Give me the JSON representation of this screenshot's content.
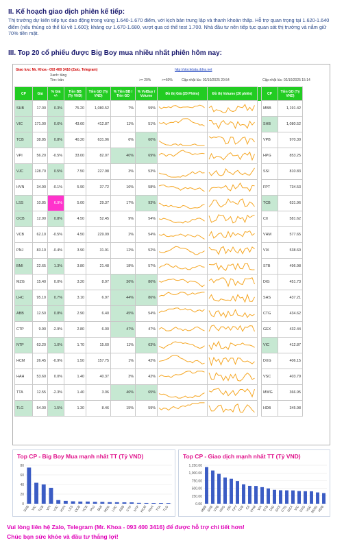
{
  "section2_title": "II. Kế hoạch giao dịch phiên kế tiếp:",
  "section2_text": "Thị trường dự kiến tiếp tục dao động trong vùng 1.640-1.670 điểm, với kịch bản trung lập và thanh khoản thấp. Hỗ trợ quan trọng tại 1.620-1.640 điểm (nếu thủng có thể lùi về 1.600); kháng cự 1.670-1.680, vượt qua có thể test 1.700. Nhà đầu tư nên tiếp tục quan sát thị trường và nắm giữ 70% tiền mặt.",
  "section3_title": "III. Top 20 cổ phiếu được Big Boy mua nhiều nhất phiên hôm nay:",
  "header": {
    "contact": "Giao lưu: Mr. Khoa - 093 400 3416 (Zalo, Telegram)",
    "site": "http://stockdata.ddns.net",
    "legend1": "Xanh: tăng",
    "legend2": "Tím: trần",
    "threshold1": ">= 20%",
    "threshold2": ">=60%",
    "updated_left": "Cập nhật lúc: 02/10/2025 20:54",
    "updated_right": "Cập nhật lúc: 02/10/2025 15:14"
  },
  "columns": [
    "CP",
    "Giá",
    "% Giá +/-",
    "Tiền BB (Tỷ VND)",
    "Tiền GD (Tỷ VND)",
    "% Tiền BB / Tiền GD",
    "% VolBuy / Volume",
    "Đồ thị Giá (20 Phiên)",
    "Đồ thị Volume (20 phiên)"
  ],
  "right_columns": [
    "CP",
    "Tiền GD (Tỷ VND)"
  ],
  "rows": [
    {
      "cp": "SHB",
      "price": "17.00",
      "chg": "0.3%",
      "bb": "75.20",
      "gd": "1,080.52",
      "pct_bb": "7%",
      "volbuy": "59%",
      "rcp": "MBB",
      "rgd": "1,191.42"
    },
    {
      "cp": "VIC",
      "price": "171.00",
      "chg": "0.6%",
      "bb": "43.60",
      "gd": "412.87",
      "pct_bb": "11%",
      "volbuy": "51%",
      "rcp": "SHB",
      "rgd": "1,080.52"
    },
    {
      "cp": "TCB",
      "price": "38.85",
      "chg": "0.8%",
      "bb": "40.20",
      "gd": "631.96",
      "pct_bb": "6%",
      "volbuy": "60%",
      "rcp": "VPB",
      "rgd": "970.30"
    },
    {
      "cp": "VPI",
      "price": "56.20",
      "chg": "-0.5%",
      "bb": "33.00",
      "gd": "82.07",
      "pct_bb": "40%",
      "volbuy": "69%",
      "rcp": "HPG",
      "rgd": "853.25"
    },
    {
      "cp": "VJC",
      "price": "128.70",
      "chg": "0.5%",
      "bb": "7.50",
      "gd": "227.98",
      "pct_bb": "3%",
      "volbuy": "53%",
      "rcp": "SSI",
      "rgd": "810.83"
    },
    {
      "cp": "HVN",
      "price": "34.90",
      "chg": "-0.1%",
      "bb": "5.90",
      "gd": "37.72",
      "pct_bb": "16%",
      "volbuy": "58%",
      "rcp": "FPT",
      "rgd": "734.53"
    },
    {
      "cp": "LSS",
      "price": "10.85",
      "chg": "6.9%",
      "bb": "5.00",
      "gd": "29.37",
      "pct_bb": "17%",
      "volbuy": "93%",
      "rcp": "TCB",
      "rgd": "631.96"
    },
    {
      "cp": "OCB",
      "price": "12.90",
      "chg": "0.8%",
      "bb": "4.50",
      "gd": "52.45",
      "pct_bb": "9%",
      "volbuy": "54%",
      "rcp": "CII",
      "rgd": "581.62"
    },
    {
      "cp": "VCB",
      "price": "62.10",
      "chg": "-0.5%",
      "bb": "4.50",
      "gd": "229.09",
      "pct_bb": "2%",
      "volbuy": "54%",
      "rcp": "VHM",
      "rgd": "577.65"
    },
    {
      "cp": "PNJ",
      "price": "83.10",
      "chg": "-0.4%",
      "bb": "3.90",
      "gd": "31.91",
      "pct_bb": "12%",
      "volbuy": "52%",
      "rcp": "VIX",
      "rgd": "538.60"
    },
    {
      "cp": "BMI",
      "price": "22.65",
      "chg": "1.3%",
      "bb": "3.80",
      "gd": "21.48",
      "pct_bb": "18%",
      "volbuy": "57%",
      "rcp": "STB",
      "rgd": "496.98"
    },
    {
      "cp": "MZG",
      "price": "15.40",
      "chg": "0.0%",
      "bb": "3.20",
      "gd": "8.97",
      "pct_bb": "36%",
      "volbuy": "86%",
      "rcp": "DIG",
      "rgd": "451.73"
    },
    {
      "cp": "LHC",
      "price": "95.10",
      "chg": "0.7%",
      "bb": "3.10",
      "gd": "6.97",
      "pct_bb": "44%",
      "volbuy": "86%",
      "rcp": "SHS",
      "rgd": "437.21"
    },
    {
      "cp": "ABB",
      "price": "12.50",
      "chg": "0.8%",
      "bb": "2.90",
      "gd": "6.40",
      "pct_bb": "45%",
      "volbuy": "54%",
      "rcp": "CTG",
      "rgd": "434.62"
    },
    {
      "cp": "CTP",
      "price": "9.90",
      "chg": "-2.9%",
      "bb": "2.80",
      "gd": "6.00",
      "pct_bb": "47%",
      "volbuy": "47%",
      "rcp": "GEX",
      "rgd": "432.44"
    },
    {
      "cp": "NTP",
      "price": "63.20",
      "chg": "1.0%",
      "bb": "1.70",
      "gd": "15.60",
      "pct_bb": "11%",
      "volbuy": "63%",
      "rcp": "VIC",
      "rgd": "412.87"
    },
    {
      "cp": "HCM",
      "price": "26.45",
      "chg": "-0.9%",
      "bb": "1.50",
      "gd": "157.75",
      "pct_bb": "1%",
      "volbuy": "42%",
      "rcp": "DXG",
      "rgd": "406.15"
    },
    {
      "cp": "HAH",
      "price": "53.60",
      "chg": "0.0%",
      "bb": "1.40",
      "gd": "40.37",
      "pct_bb": "3%",
      "volbuy": "42%",
      "rcp": "VSC",
      "rgd": "403.79"
    },
    {
      "cp": "TTA",
      "price": "12.55",
      "chg": "-2.3%",
      "bb": "1.40",
      "gd": "3.06",
      "pct_bb": "46%",
      "volbuy": "65%",
      "rcp": "MWG",
      "rgd": "366.95"
    },
    {
      "cp": "TLG",
      "price": "54.00",
      "chg": "1.5%",
      "bb": "1.30",
      "gd": "8.46",
      "pct_bb": "15%",
      "volbuy": "59%",
      "rcp": "HDB",
      "rgd": "345.98"
    }
  ],
  "colors": {
    "header_green": "#22cc22",
    "up_highlight": "#c6e8d2",
    "ceiling_magenta": "#ff33cc",
    "spark_orange": "#f5a623",
    "bar_blue": "#3b5cc4",
    "title_magenta": "#e0108a"
  },
  "chart_data": [
    {
      "type": "bar",
      "title": "Top CP - Big Boy Mua mạnh nhất TT (Tỷ VND)",
      "categories": [
        "SHB",
        "VIC",
        "TCB",
        "VPI",
        "VJC",
        "HVN",
        "LSS",
        "OCB",
        "VCB",
        "PNJ",
        "BMI",
        "MZG",
        "LHC",
        "ABB",
        "CTP",
        "NTP",
        "HCM",
        "HAH",
        "TTA",
        "TLG"
      ],
      "values": [
        75.2,
        43.6,
        40.2,
        33.0,
        7.5,
        5.9,
        5.0,
        4.5,
        4.5,
        3.9,
        3.8,
        3.2,
        3.1,
        2.9,
        2.8,
        1.7,
        1.5,
        1.4,
        1.4,
        1.3
      ],
      "ylim": [
        0,
        80
      ],
      "yticks": [
        "0",
        "20",
        "40",
        "60",
        "80"
      ]
    },
    {
      "type": "bar",
      "title": "Top CP - Giao dịch mạnh nhất TT (Tỷ VND)",
      "categories": [
        "MBB",
        "SHB",
        "VPB",
        "HPG",
        "SSI",
        "FPT",
        "TCB",
        "CII",
        "VHM",
        "VIX",
        "STB",
        "DIG",
        "SHS",
        "CTG",
        "GEX",
        "VIC",
        "DXG",
        "VSC",
        "MWG",
        "HDB"
      ],
      "values": [
        1191.42,
        1080.52,
        970.3,
        853.25,
        810.83,
        734.53,
        631.96,
        581.62,
        577.65,
        538.6,
        496.98,
        451.73,
        437.21,
        434.62,
        432.44,
        412.87,
        406.15,
        403.79,
        366.95,
        345.98
      ],
      "ylim": [
        0,
        1250
      ],
      "yticks": [
        "0.00",
        "250.00",
        "500.00",
        "750.00",
        "1,000.00",
        "1,250.00"
      ]
    }
  ],
  "footer_line1": "Vui lòng liên hệ Zalo, Telegram (Mr. Khoa - 093 400 3416) để được hỗ trợ chi tiết hơn!",
  "footer_line2": "Chúc bạn sức khỏe và đầu tư thắng lợi!"
}
